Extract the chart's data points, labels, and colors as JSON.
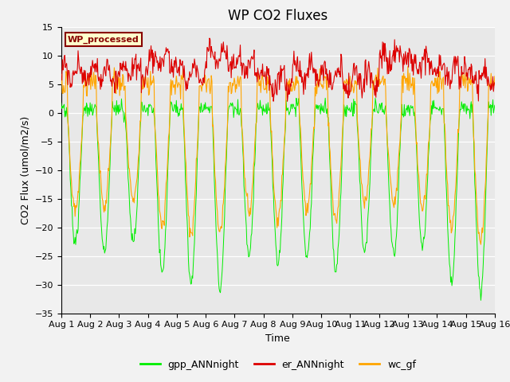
{
  "title": "WP CO2 Fluxes",
  "xlabel": "Time",
  "ylabel_plain": "CO2 Flux (umol/m2/s)",
  "ylim": [
    -35,
    15
  ],
  "yticks": [
    -35,
    -30,
    -25,
    -20,
    -15,
    -10,
    -5,
    0,
    5,
    10,
    15
  ],
  "n_days": 15,
  "steps_per_day": 48,
  "color_gpp": "#00EE00",
  "color_er": "#DD0000",
  "color_wc": "#FFA500",
  "label_gpp": "gpp_ANNnight",
  "label_er": "er_ANNnight",
  "label_wc": "wc_gf",
  "watermark_text": "WP_processed",
  "watermark_bg": "#FFFFCC",
  "watermark_fg": "#880000",
  "bg_color": "#E8E8E8",
  "title_fontsize": 12,
  "axis_fontsize": 9,
  "tick_fontsize": 8
}
